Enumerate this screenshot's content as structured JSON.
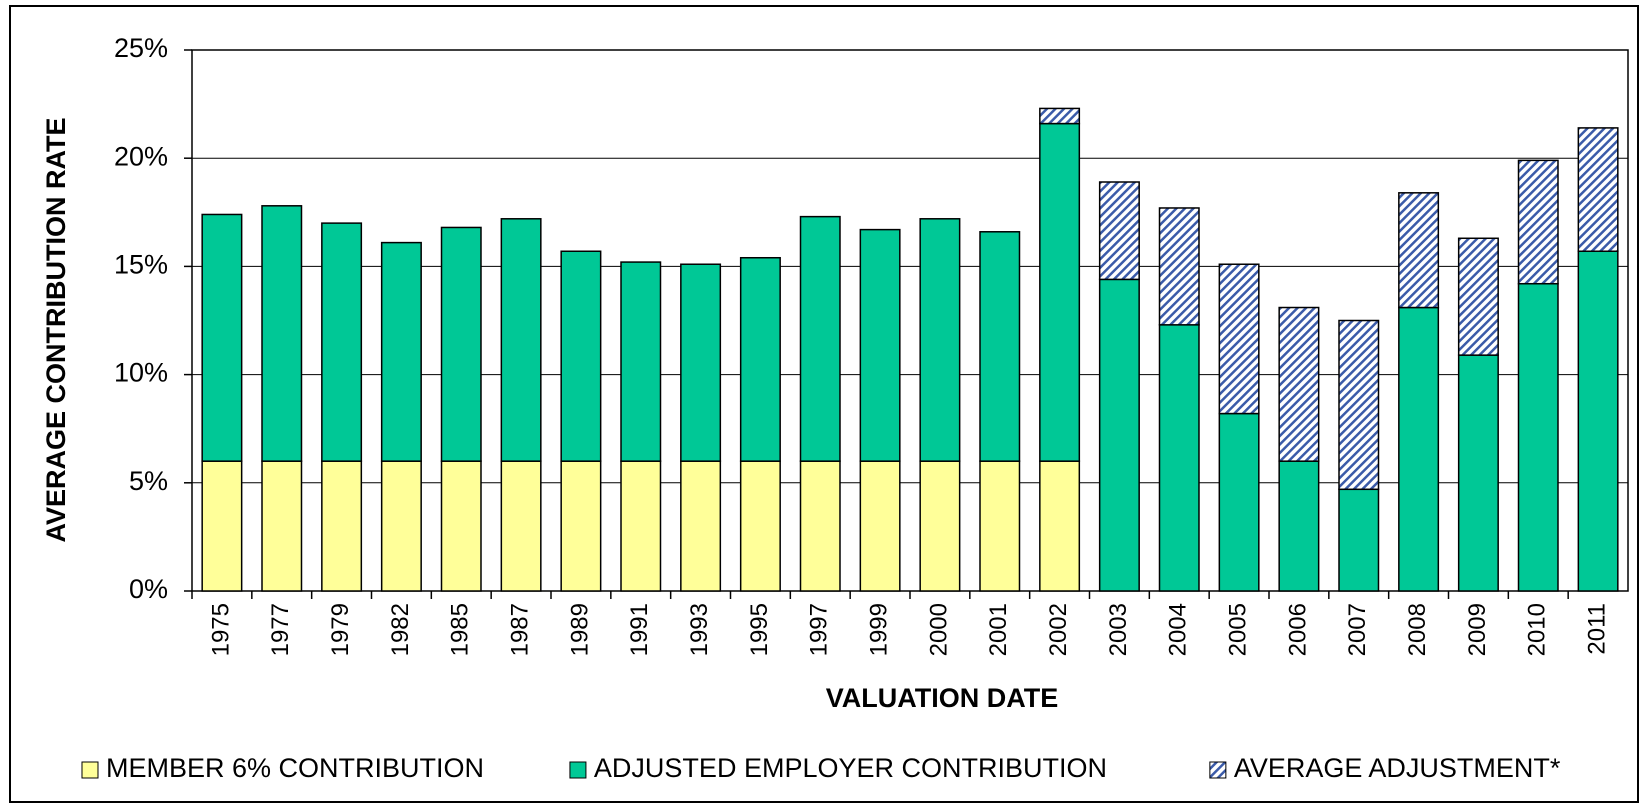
{
  "chart_data": {
    "type": "stacked-bar",
    "x_label": "VALUATION DATE",
    "y_label": "AVERAGE CONTRIBUTION RATE",
    "categories": [
      "1975",
      "1977",
      "1979",
      "1982",
      "1985",
      "1987",
      "1989",
      "1991",
      "1993",
      "1995",
      "1997",
      "1999",
      "2000",
      "2001",
      "2002",
      "2003",
      "2004",
      "2005",
      "2006",
      "2007",
      "2008",
      "2009",
      "2010",
      "2011"
    ],
    "series": [
      {
        "name": "MEMBER 6% CONTRIBUTION",
        "color": "#ffff99",
        "values": [
          6,
          6,
          6,
          6,
          6,
          6,
          6,
          6,
          6,
          6,
          6,
          6,
          6,
          6,
          6,
          0,
          0,
          0,
          0,
          0,
          0,
          0,
          0,
          0
        ]
      },
      {
        "name": "ADJUSTED EMPLOYER CONTRIBUTION",
        "color": "#00c896",
        "values": [
          11.4,
          11.8,
          11.0,
          10.1,
          10.8,
          11.2,
          9.7,
          9.2,
          9.1,
          9.4,
          11.3,
          10.7,
          11.2,
          10.6,
          15.6,
          14.4,
          12.3,
          8.2,
          6.0,
          4.7,
          13.1,
          10.9,
          14.2,
          15.7
        ]
      },
      {
        "name": "AVERAGE ADJUSTMENT*",
        "color": "#3b5ba9",
        "pattern": "hatch",
        "values": [
          0,
          0,
          0,
          0,
          0,
          0,
          0,
          0,
          0,
          0,
          0,
          0,
          0,
          0,
          0.7,
          4.5,
          5.4,
          6.9,
          7.1,
          7.8,
          5.3,
          5.4,
          5.7,
          5.7
        ]
      }
    ],
    "ylim": [
      0,
      25
    ],
    "yticks": [
      {
        "value": 0,
        "label": "0%"
      },
      {
        "value": 5,
        "label": "5%"
      },
      {
        "value": 10,
        "label": "10%"
      },
      {
        "value": 15,
        "label": "15%"
      },
      {
        "value": 20,
        "label": "20%"
      },
      {
        "value": 25,
        "label": "25%"
      }
    ],
    "grid": true,
    "legend": "bottom"
  }
}
